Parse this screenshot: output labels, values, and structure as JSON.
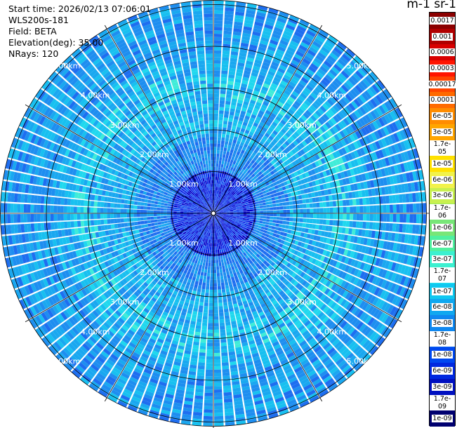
{
  "header": {
    "start_time": "Start time: 2026/02/13 07:06:01",
    "instrument": "WLS200s-181",
    "field": "Field: BETA",
    "elevation": "Elevation(deg): 35.00",
    "nrays": "NRays: 120"
  },
  "colorbar": {
    "title": "m-1 sr-1",
    "labels": [
      "0.0017",
      "0.001",
      "0.0006",
      "0.0003",
      "0.00017",
      "0.0001",
      "6e-05",
      "3e-05",
      "1.7e-05",
      "1e-05",
      "6e-06",
      "3e-06",
      "1.7e-06",
      "1e-06",
      "6e-07",
      "3e-07",
      "1.7e-07",
      "1e-07",
      "6e-08",
      "3e-08",
      "1.7e-08",
      "1e-08",
      "6e-09",
      "3e-09",
      "1.7e-09",
      "1e-09"
    ],
    "colors": [
      "#8b0000",
      "#b00000",
      "#d80000",
      "#ff1500",
      "#ff4500",
      "#ff6a00",
      "#ff8c00",
      "#ffa500",
      "#ffc400",
      "#ffe100",
      "#f2f24a",
      "#c8f050",
      "#a0ec5a",
      "#78e678",
      "#50f0a0",
      "#3cf0d0",
      "#28e8f0",
      "#10c8f0",
      "#10a8f0",
      "#1088f0",
      "#1068f0",
      "#0048f0",
      "#0028e0",
      "#0010c0",
      "#00089a",
      "#000070"
    ]
  },
  "chart_data": {
    "type": "ppi",
    "field": "BETA",
    "elevation_deg": 35.0,
    "nrays": 120,
    "range_rings_km": [
      1,
      2,
      3,
      4,
      5
    ],
    "range_ring_labels": [
      "1.00km",
      "2.00km",
      "3.00km",
      "4.00km",
      "5.00km"
    ],
    "max_range_km": 5.1,
    "color_scale": "log",
    "value_range": [
      1e-09,
      0.0017
    ]
  }
}
